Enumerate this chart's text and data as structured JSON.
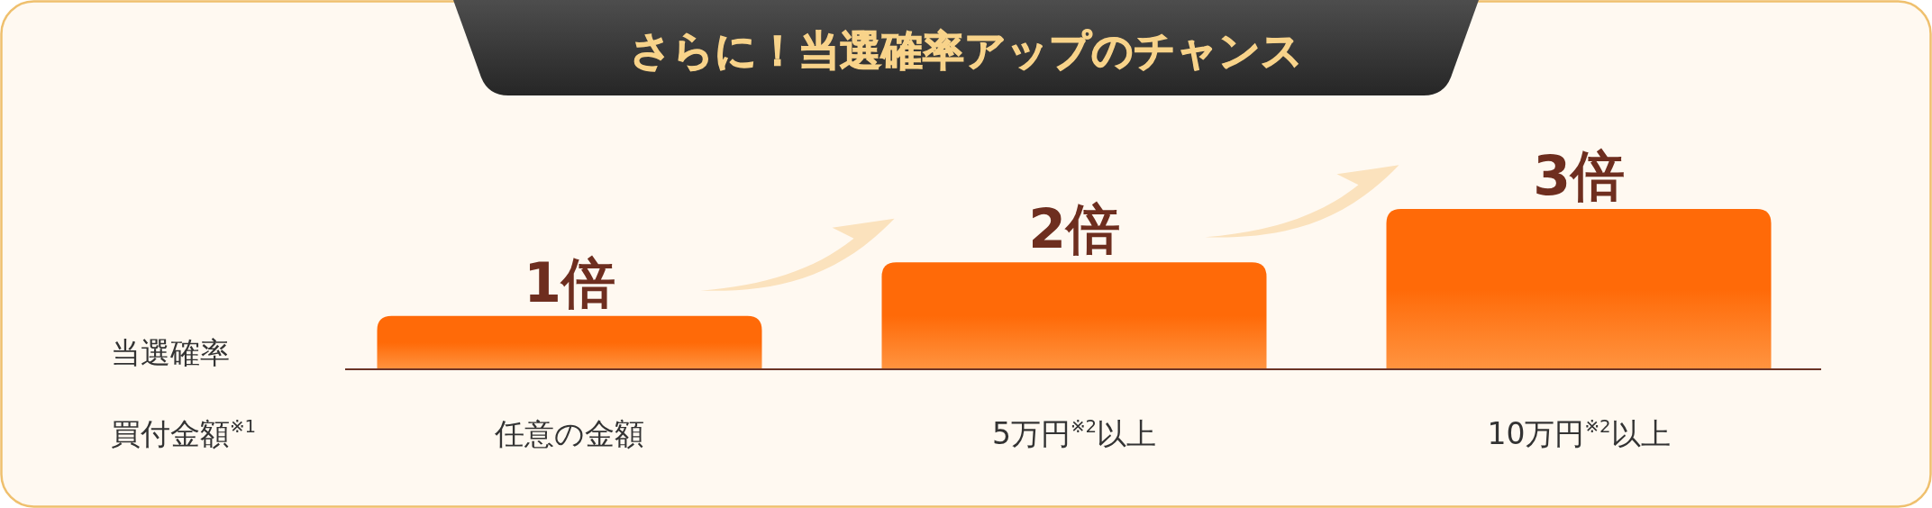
{
  "chart_data": {
    "type": "bar",
    "title": "さらに！当選確率アップのチャンス",
    "ylabel": "当選確率",
    "xlabel": "買付金額$^{※1}$",
    "categories": [
      "任意の金額",
      "5万円$^{※2}$以上",
      "10万円$^{※2}$以上"
    ],
    "values": [
      1,
      2,
      3
    ],
    "value_labels": [
      "1倍",
      "2倍",
      "3倍"
    ],
    "color": "#ff6a08"
  }
}
